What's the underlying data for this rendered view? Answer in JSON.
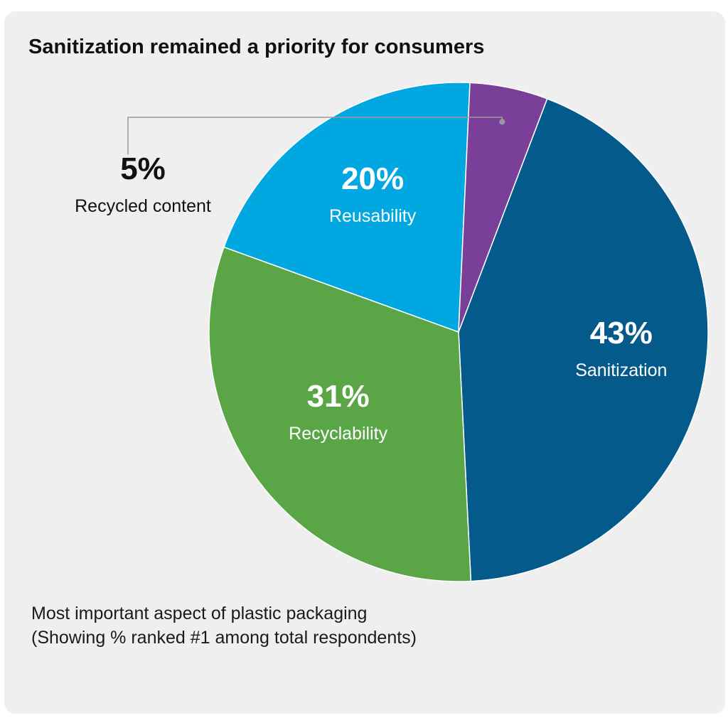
{
  "chart_data": {
    "type": "pie",
    "title": "Sanitization remained a priority for consumers",
    "slices": [
      {
        "label": "Sanitization",
        "value": 43,
        "display": "43%",
        "color": "#045a8b",
        "text_color": "#ffffff"
      },
      {
        "label": "Recyclability",
        "value": 31,
        "display": "31%",
        "color": "#5aa646",
        "text_color": "#ffffff"
      },
      {
        "label": "Reusability",
        "value": 20,
        "display": "20%",
        "color": "#01a7e0",
        "text_color": "#ffffff"
      },
      {
        "label": "Recycled content",
        "value": 5,
        "display": "5%",
        "color": "#7a3f98",
        "text_color": "#111111"
      }
    ],
    "note_line1": "Most important aspect of plastic packaging",
    "note_line2": "(Showing % ranked #1 among total respondents)"
  }
}
